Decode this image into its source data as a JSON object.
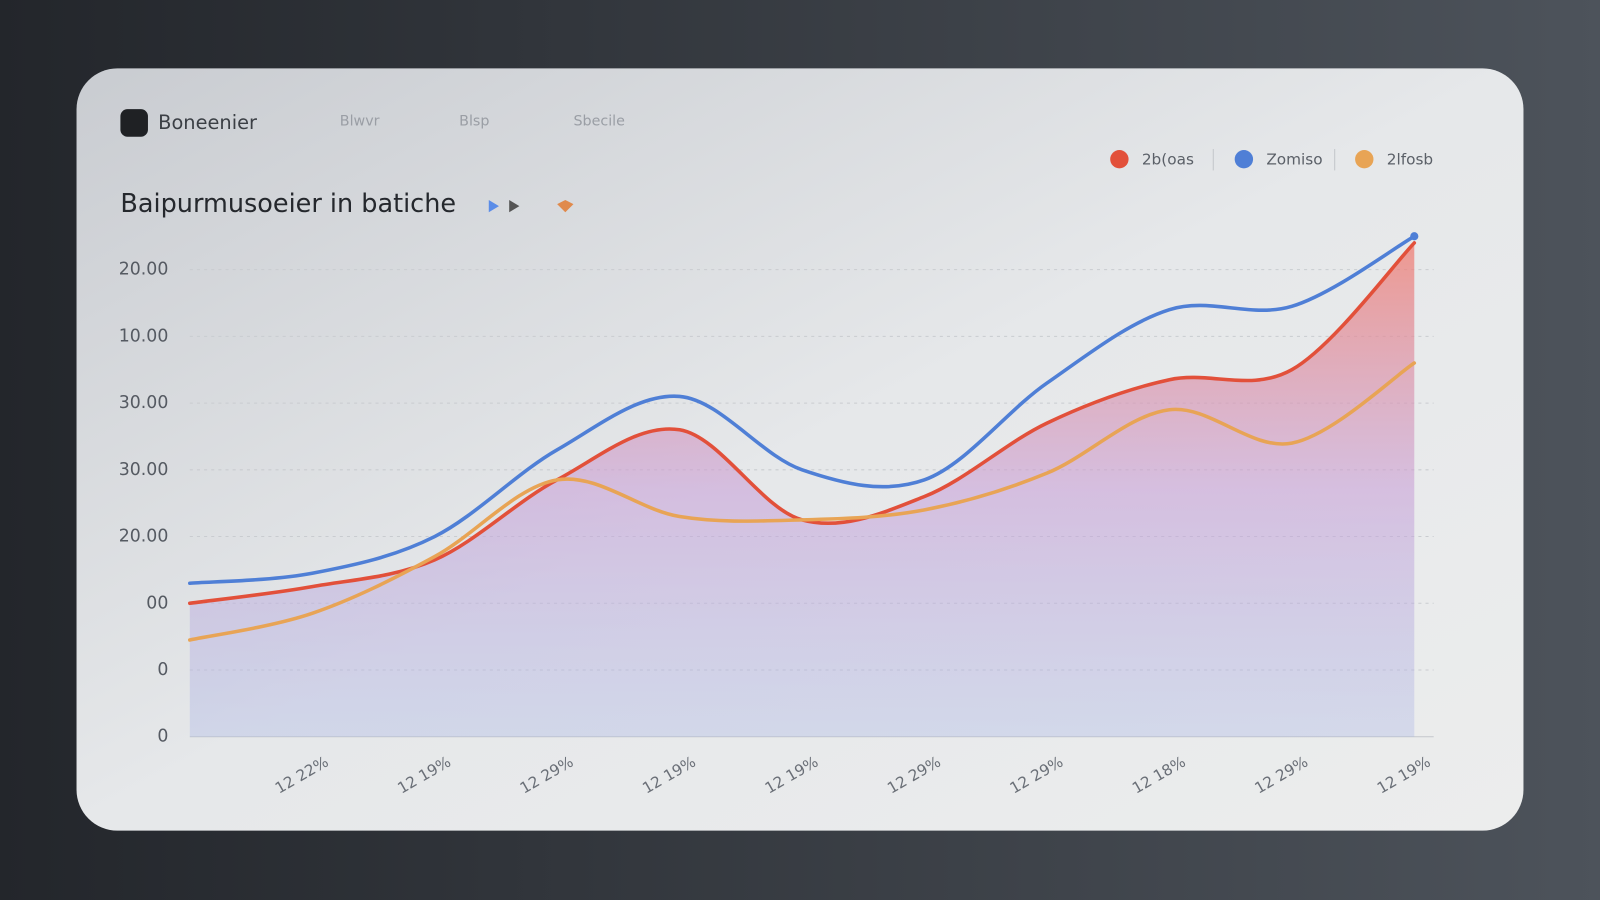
{
  "header": {
    "brand": "Boneenier",
    "nav": [
      "Blwvr",
      "Blsp",
      "Sbecile"
    ]
  },
  "chart_data": {
    "type": "line",
    "title": "Baipurmusoeier in batiche",
    "categories": [
      null,
      "12 22%",
      "12 19%",
      "12 29%",
      "12 19%",
      "12 19%",
      "12 29%",
      "12 29%",
      "12 18%",
      "12 29%",
      "12 19%"
    ],
    "series": [
      {
        "name": "2b(oas",
        "color": "#e2503a",
        "fill": true,
        "values": [
          2.0,
          2.25,
          2.65,
          3.85,
          4.6,
          3.25,
          3.6,
          4.7,
          5.35,
          5.5,
          7.4
        ]
      },
      {
        "name": "Zomiso",
        "color": "#4f7fd6",
        "values": [
          2.3,
          2.45,
          3.0,
          4.3,
          5.1,
          4.0,
          3.85,
          5.3,
          6.4,
          6.45,
          7.5
        ]
      },
      {
        "name": "2lfosb",
        "color": "#e8a455",
        "values": [
          1.45,
          1.85,
          2.7,
          3.85,
          3.3,
          3.25,
          3.4,
          3.95,
          4.9,
          4.4,
          5.6
        ]
      }
    ],
    "ylim": [
      0,
      7.6
    ],
    "yticks": [
      {
        "value": 0,
        "label": "0"
      },
      {
        "value": 1,
        "label": "0"
      },
      {
        "value": 2,
        "label": "00"
      },
      {
        "value": 3,
        "label": "20.00"
      },
      {
        "value": 4,
        "label": "30.00"
      },
      {
        "value": 5,
        "label": "30.00"
      },
      {
        "value": 6,
        "label": "10.00"
      },
      {
        "value": 7,
        "label": "20.00"
      }
    ],
    "grid": true,
    "legend": "top-right"
  }
}
